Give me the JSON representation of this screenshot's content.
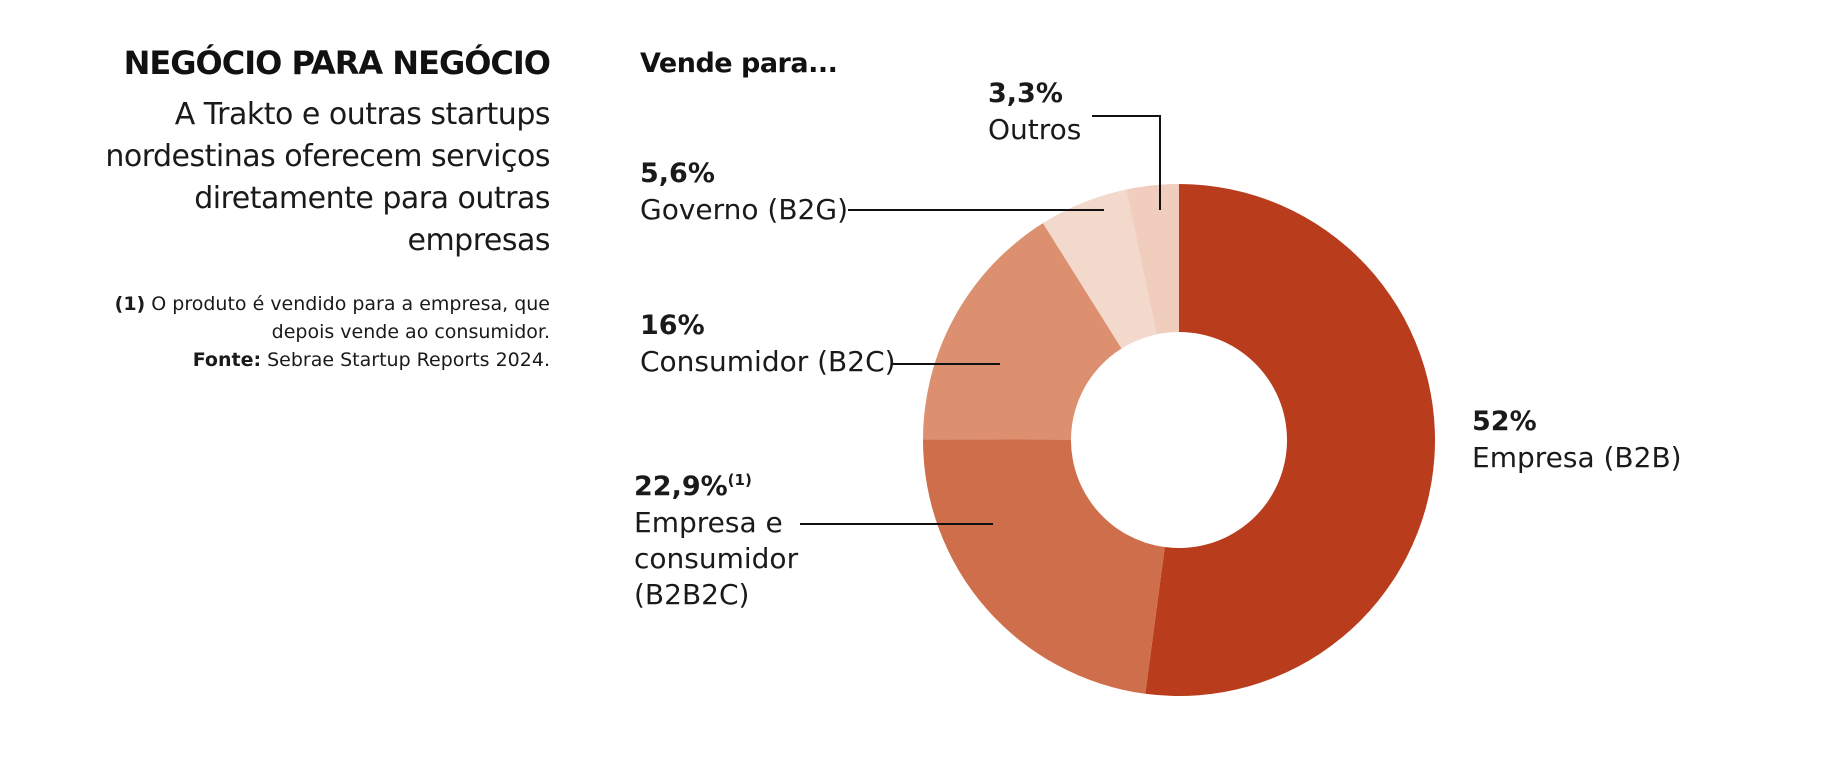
{
  "header": {
    "title": "NEGÓCIO PARA NEGÓCIO",
    "subtitle": "A Trakto e outras startups nordestinas oferecem serviços diretamente para outras empresas",
    "note_marker": "(1)",
    "note_text": "O produto é vendido para a empresa, que depois vende ao consumidor.",
    "source_label": "Fonte:",
    "source_text": "Sebrae Startup Reports 2024."
  },
  "chart_data": {
    "type": "pie",
    "title": "Vende para...",
    "donut": true,
    "series": [
      {
        "label_pct": "52%",
        "label": "Empresa (B2B)",
        "value": 52,
        "color": "#b93c1c"
      },
      {
        "label_pct": "22,9%",
        "label_sup": "(1)",
        "label": "Empresa e consumidor (B2B2C)",
        "value": 22.9,
        "color": "#cf6e4a"
      },
      {
        "label_pct": "16%",
        "label": "Consumidor (B2C)",
        "value": 16,
        "color": "#dc9070"
      },
      {
        "label_pct": "5,6%",
        "label": "Governo (B2G)",
        "value": 5.6,
        "color": "#f3d9cc"
      },
      {
        "label_pct": "3,3%",
        "label": "Outros",
        "value": 3.3,
        "color": "#f0cdbd"
      }
    ]
  }
}
